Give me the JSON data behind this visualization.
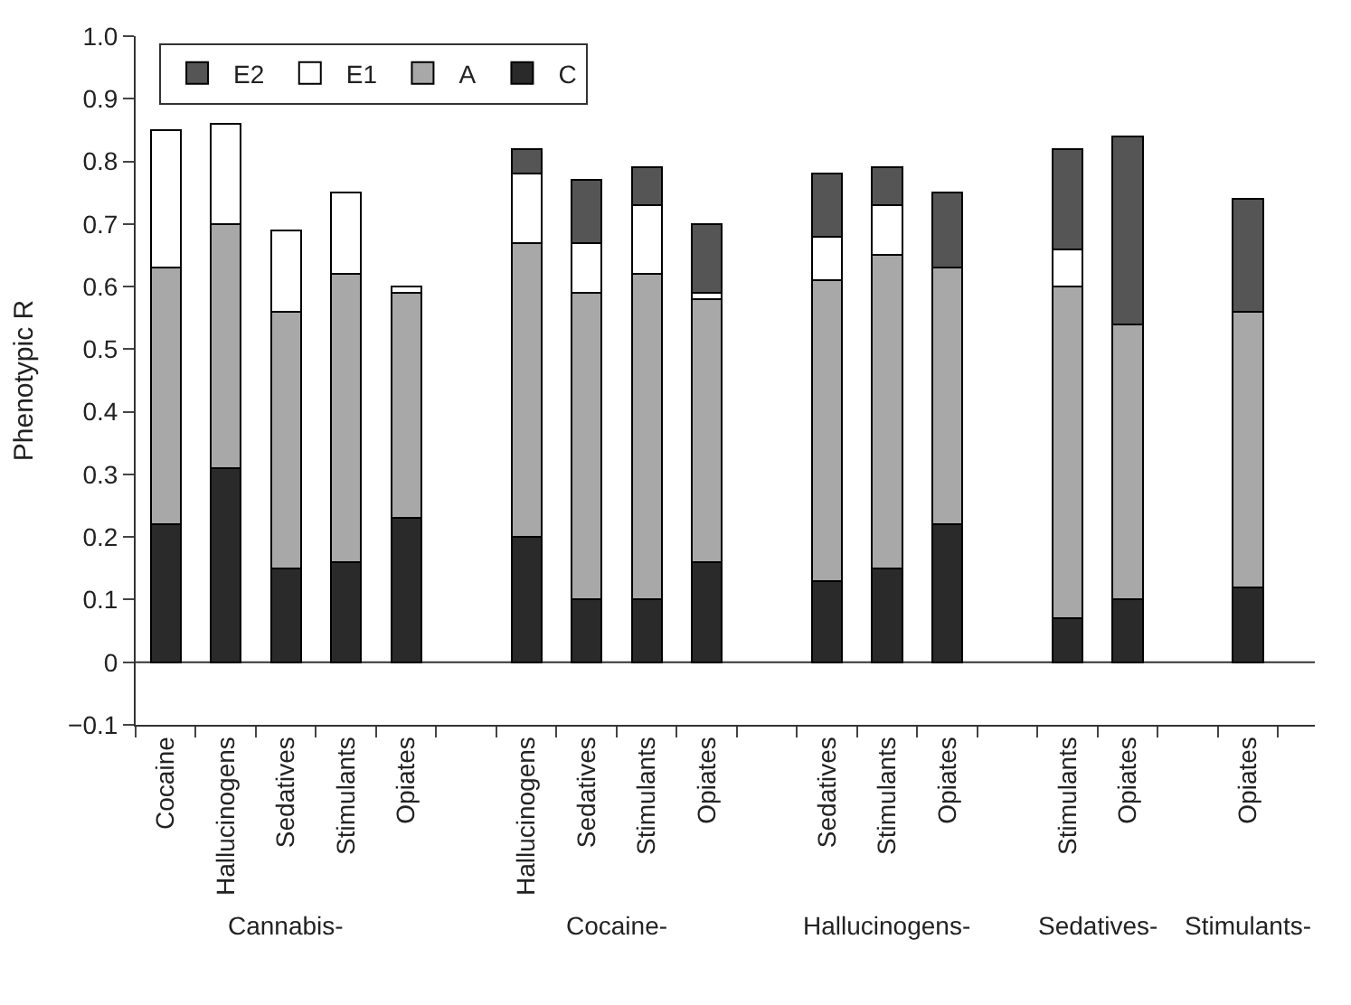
{
  "chart_data": {
    "type": "bar",
    "stacked": true,
    "ylabel": "Phenotypic R",
    "categories": [
      "Cocaine",
      "Hallucinogens",
      "Sedatives",
      "Stimulants",
      "Opiates",
      null,
      "Hallucinogens",
      "Sedatives",
      "Stimulants",
      "Opiates",
      null,
      "Sedatives",
      "Stimulants",
      "Opiates",
      null,
      "Stimulants",
      "Opiates",
      null,
      "Opiates"
    ],
    "series": [
      {
        "name": "C",
        "color": "#2a2a2a",
        "values": [
          0.22,
          0.31,
          0.15,
          0.16,
          0.23,
          null,
          0.2,
          0.1,
          0.1,
          0.16,
          null,
          0.13,
          0.15,
          0.22,
          null,
          0.07,
          0.1,
          null,
          0.12
        ]
      },
      {
        "name": "A",
        "color": "#a8a8a8",
        "values": [
          0.41,
          0.39,
          0.41,
          0.46,
          0.36,
          null,
          0.47,
          0.49,
          0.52,
          0.42,
          null,
          0.48,
          0.5,
          0.41,
          null,
          0.53,
          0.44,
          null,
          0.44
        ]
      },
      {
        "name": "E1",
        "color": "#ffffff",
        "values": [
          0.22,
          0.16,
          0.13,
          0.13,
          0.01,
          null,
          0.11,
          0.08,
          0.11,
          0.01,
          null,
          0.07,
          0.08,
          null,
          null,
          0.06,
          null,
          null,
          null
        ]
      },
      {
        "name": "E2",
        "color": "#555555",
        "values": [
          null,
          null,
          null,
          null,
          null,
          null,
          0.04,
          0.1,
          0.06,
          0.11,
          null,
          0.1,
          0.06,
          0.12,
          null,
          0.16,
          0.3,
          null,
          0.18
        ]
      }
    ],
    "annotations": [
      "Cannabis-",
      "Cocaine-",
      "Hallucinogens-",
      "Sedatives-",
      "Stimulants-"
    ],
    "ylim": [
      -0.1,
      1.0
    ],
    "yticks": [
      {
        "value": -0.1,
        "label": "−0.1"
      },
      0,
      0.1,
      0.2,
      0.3,
      0.4,
      0.5,
      0.6,
      0.7,
      0.8,
      0.9,
      {
        "value": 1.0,
        "label": "1.0"
      }
    ],
    "ref_lines": [
      {
        "axis": "y",
        "value": 0,
        "color": "#333333"
      }
    ],
    "legend": "top left"
  }
}
